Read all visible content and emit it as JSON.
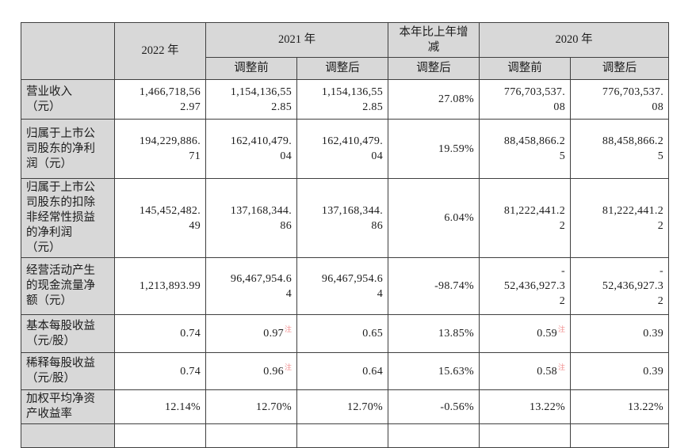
{
  "colors": {
    "header_bg": "#d8d8d8",
    "border": "#3f3f3f",
    "note_red": "#f08d8d"
  },
  "note_label": "注",
  "table": {
    "header": {
      "corner": "",
      "col_2022": "2022 年",
      "col_2021": "2021 年",
      "col_change": "本年比上年增\n减",
      "col_2020": "2020 年",
      "sub_2021_pre": "调整前",
      "sub_2021_post": "调整后",
      "sub_change_post": "调整后",
      "sub_2020_pre": "调整前",
      "sub_2020_post": "调整后"
    },
    "rows": [
      {
        "label": "营业收入\n（元）",
        "cells": [
          {
            "t": "1,466,718,56\n2.97"
          },
          {
            "t": "1,154,136,55\n2.85"
          },
          {
            "t": "1,154,136,55\n2.85"
          },
          {
            "t": "27.08%"
          },
          {
            "t": "776,703,537.\n08"
          },
          {
            "t": "776,703,537.\n08"
          }
        ]
      },
      {
        "label": "归属于上市公\n司股东的净利\n润（元）",
        "cells": [
          {
            "t": "194,229,886.\n71"
          },
          {
            "t": "162,410,479.\n04"
          },
          {
            "t": "162,410,479.\n04"
          },
          {
            "t": "19.59%"
          },
          {
            "t": "88,458,866.2\n5"
          },
          {
            "t": "88,458,866.2\n5"
          }
        ]
      },
      {
        "label": "归属于上市公\n司股东的扣除\n非经常性损益\n的净利润\n（元）",
        "cells": [
          {
            "t": "145,452,482.\n49"
          },
          {
            "t": "137,168,344.\n86"
          },
          {
            "t": "137,168,344.\n86"
          },
          {
            "t": "6.04%"
          },
          {
            "t": "81,222,441.2\n2"
          },
          {
            "t": "81,222,441.2\n2"
          }
        ]
      },
      {
        "label": "经营活动产生\n的现金流量净\n额（元）",
        "cells": [
          {
            "t": "1,213,893.99"
          },
          {
            "t": "96,467,954.6\n4"
          },
          {
            "t": "96,467,954.6\n4"
          },
          {
            "t": "-98.74%"
          },
          {
            "t": "-\n52,436,927.3\n2"
          },
          {
            "t": "-\n52,436,927.3\n2"
          }
        ]
      },
      {
        "label": "基本每股收益\n（元/股）",
        "cells": [
          {
            "t": "0.74"
          },
          {
            "t": "0.97",
            "note": true
          },
          {
            "t": "0.65"
          },
          {
            "t": "13.85%"
          },
          {
            "t": "0.59",
            "note": true
          },
          {
            "t": "0.39"
          }
        ]
      },
      {
        "label": "稀释每股收益\n（元/股）",
        "cells": [
          {
            "t": "0.74"
          },
          {
            "t": "0.96",
            "note": true
          },
          {
            "t": "0.64"
          },
          {
            "t": "15.63%"
          },
          {
            "t": "0.58",
            "note": true
          },
          {
            "t": "0.39"
          }
        ]
      },
      {
        "label": "加权平均净资\n产收益率",
        "cells": [
          {
            "t": "12.14%"
          },
          {
            "t": "12.70%"
          },
          {
            "t": "12.70%"
          },
          {
            "t": "-0.56%"
          },
          {
            "t": "13.22%"
          },
          {
            "t": "13.22%"
          }
        ]
      }
    ]
  }
}
